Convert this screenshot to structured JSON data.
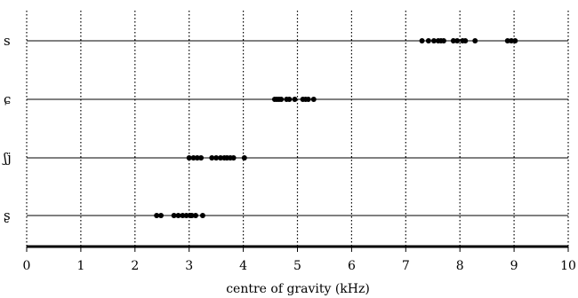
{
  "chart_data": {
    "type": "scatter",
    "title": "",
    "xlabel": "centre of gravity (kHz)",
    "ylabel": "",
    "xlim": [
      0,
      10
    ],
    "x_ticks": [
      "0",
      "1",
      "2",
      "3",
      "4",
      "5",
      "6",
      "7",
      "8",
      "9",
      "10"
    ],
    "grid": "vertical dotted",
    "categories": [
      "s",
      "ɕ",
      "ʃj",
      "ʂ"
    ],
    "series": [
      {
        "category": "s",
        "x": [
          7.3,
          7.42,
          7.52,
          7.6,
          7.65,
          7.7,
          7.88,
          7.95,
          8.05,
          8.1,
          8.28,
          8.88,
          8.95,
          9.02
        ]
      },
      {
        "category": "ɕ",
        "x": [
          4.58,
          4.62,
          4.66,
          4.7,
          4.8,
          4.85,
          4.95,
          5.1,
          5.15,
          5.2,
          5.3
        ]
      },
      {
        "category": "ʃj",
        "x": [
          3.0,
          3.08,
          3.15,
          3.22,
          3.42,
          3.5,
          3.58,
          3.65,
          3.7,
          3.76,
          3.82,
          4.02
        ]
      },
      {
        "category": "ʂ",
        "x": [
          2.4,
          2.48,
          2.72,
          2.8,
          2.88,
          2.95,
          3.02,
          3.05,
          3.12,
          3.25
        ]
      }
    ]
  }
}
